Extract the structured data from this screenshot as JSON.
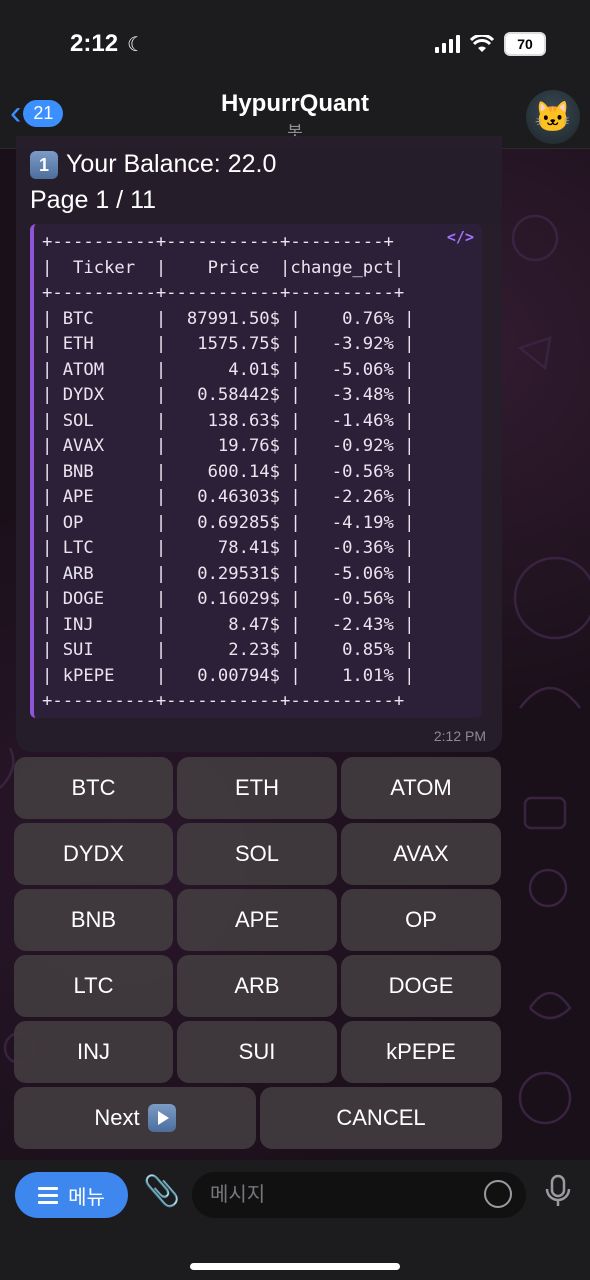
{
  "status_bar": {
    "time": "2:12",
    "battery": "70"
  },
  "header": {
    "back_count": "21",
    "title": "HypurrQuant",
    "subtitle": "봇"
  },
  "message": {
    "balance_badge": "1",
    "balance": "Your Balance: 22.0",
    "page": "Page 1 / 11",
    "code_icon": "</>",
    "table_text": "+----------+-----------+---------+\n|  Ticker  |    Price  |change_pct|\n+----------+-----------+----------+\n| BTC      |  87991.50$ |    0.76% |\n| ETH      |   1575.75$ |   -3.92% |\n| ATOM     |      4.01$ |   -5.06% |\n| DYDX     |   0.58442$ |   -3.48% |\n| SOL      |    138.63$ |   -1.46% |\n| AVAX     |     19.76$ |   -0.92% |\n| BNB      |    600.14$ |   -0.56% |\n| APE      |   0.46303$ |   -2.26% |\n| OP       |   0.69285$ |   -4.19% |\n| LTC      |     78.41$ |   -0.36% |\n| ARB      |   0.29531$ |   -5.06% |\n| DOGE     |   0.16029$ |   -0.56% |\n| INJ      |      8.47$ |   -2.43% |\n| SUI      |      2.23$ |    0.85% |\n| kPEPE    |   0.00794$ |    1.01% |\n+----------+-----------+----------+",
    "time": "2:12 PM"
  },
  "keyboard": {
    "rows": [
      [
        "BTC",
        "ETH",
        "ATOM"
      ],
      [
        "DYDX",
        "SOL",
        "AVAX"
      ],
      [
        "BNB",
        "APE",
        "OP"
      ],
      [
        "LTC",
        "ARB",
        "DOGE"
      ],
      [
        "INJ",
        "SUI",
        "kPEPE"
      ]
    ],
    "next": "Next",
    "cancel": "CANCEL"
  },
  "input": {
    "menu": "메뉴",
    "placeholder": "메시지"
  },
  "colors": {
    "accent": "#3d87ef",
    "code_border": "#8e55d8",
    "button_bg": "#403a3e"
  }
}
